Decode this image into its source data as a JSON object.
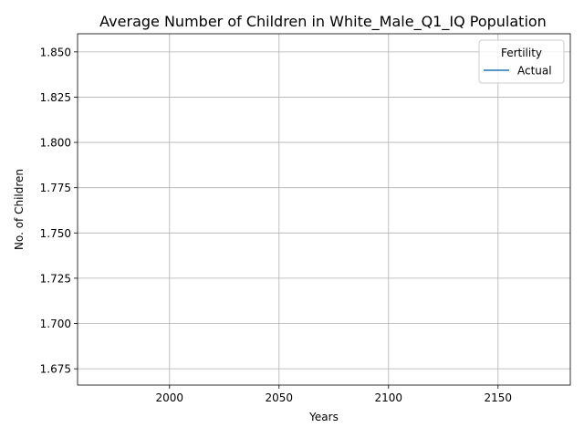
{
  "chart_data": {
    "type": "line",
    "title": "Average Number of Children in White_Male_Q1_IQ Population",
    "xlabel": "Years",
    "ylabel": "No. of Children",
    "xlim": [
      1958,
      2183
    ],
    "ylim": [
      1.666,
      1.86
    ],
    "xticks": [
      2000,
      2050,
      2100,
      2150
    ],
    "yticks": [
      1.675,
      1.7,
      1.725,
      1.75,
      1.775,
      1.8,
      1.825,
      1.85
    ],
    "xtick_labels": [
      "2000",
      "2050",
      "2100",
      "2150"
    ],
    "ytick_labels": [
      "1.675",
      "1.700",
      "1.725",
      "1.750",
      "1.775",
      "1.800",
      "1.825",
      "1.850"
    ],
    "grid": true,
    "legend": {
      "title": "Fertility",
      "placement": "top-right",
      "entries": [
        {
          "label": "Actual",
          "color": "#1f77b4"
        }
      ]
    },
    "series": [
      {
        "name": "Actual",
        "color": "#1f77b4",
        "x": [],
        "y": []
      }
    ]
  }
}
